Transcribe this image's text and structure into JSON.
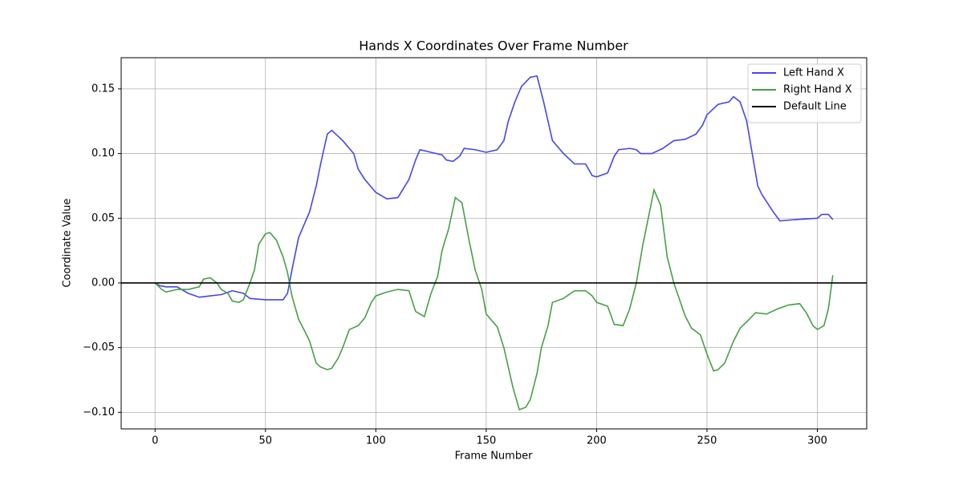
{
  "chart_data": {
    "type": "line",
    "title": "Hands X Coordinates Over Frame Number",
    "xlabel": "Frame Number",
    "ylabel": "Coordinate Value",
    "xlim": [
      -15.35,
      322.35
    ],
    "ylim": [
      -0.1128,
      0.1741
    ],
    "xticks": [
      0,
      50,
      100,
      150,
      200,
      250,
      300
    ],
    "yticks": [
      {
        "value": -0.1,
        "label": "−0.10"
      },
      {
        "value": -0.05,
        "label": "−0.05"
      },
      {
        "value": 0,
        "label": "0.00"
      },
      {
        "value": 0.05,
        "label": "0.05"
      },
      {
        "value": 0.1,
        "label": "0.10"
      },
      {
        "value": 0.15,
        "label": "0.15"
      }
    ],
    "grid": true,
    "legend": "upper right",
    "series": [
      {
        "name": "Left Hand X",
        "color": "#4545ee",
        "x": [
          0,
          2,
          5,
          10,
          15,
          20,
          25,
          30,
          35,
          40,
          43,
          50,
          55,
          58,
          60,
          62,
          65,
          70,
          73,
          75,
          78,
          80,
          85,
          90,
          92,
          95,
          100,
          105,
          110,
          115,
          118,
          120,
          125,
          130,
          132,
          135,
          138,
          140,
          145,
          150,
          155,
          158,
          160,
          163,
          166,
          170,
          173,
          176,
          178,
          180,
          185,
          190,
          195,
          198,
          200,
          205,
          208,
          210,
          215,
          218,
          220,
          225,
          230,
          235,
          240,
          245,
          248,
          250,
          255,
          260,
          262,
          265,
          268,
          270,
          273,
          275,
          280,
          283,
          290,
          300,
          302,
          305,
          307
        ],
        "values": [
          0.0,
          -0.002,
          -0.003,
          -0.003,
          -0.008,
          -0.011,
          -0.01,
          -0.009,
          -0.006,
          -0.008,
          -0.012,
          -0.013,
          -0.013,
          -0.013,
          -0.008,
          0.01,
          0.035,
          0.055,
          0.075,
          0.092,
          0.115,
          0.118,
          0.11,
          0.1,
          0.088,
          0.08,
          0.07,
          0.065,
          0.066,
          0.08,
          0.095,
          0.103,
          0.101,
          0.099,
          0.095,
          0.094,
          0.098,
          0.104,
          0.103,
          0.101,
          0.103,
          0.11,
          0.125,
          0.14,
          0.152,
          0.159,
          0.16,
          0.14,
          0.125,
          0.11,
          0.1,
          0.092,
          0.092,
          0.083,
          0.082,
          0.085,
          0.098,
          0.103,
          0.104,
          0.103,
          0.1,
          0.1,
          0.104,
          0.11,
          0.111,
          0.115,
          0.122,
          0.13,
          0.138,
          0.14,
          0.144,
          0.14,
          0.125,
          0.105,
          0.075,
          0.068,
          0.055,
          0.048,
          0.049,
          0.05,
          0.053,
          0.053,
          0.049
        ]
      },
      {
        "name": "Right Hand X",
        "color": "#45a045",
        "x": [
          0,
          3,
          5,
          10,
          15,
          20,
          22,
          25,
          28,
          30,
          33,
          35,
          38,
          40,
          43,
          45,
          47,
          50,
          52,
          55,
          58,
          60,
          62,
          65,
          68,
          70,
          73,
          75,
          78,
          80,
          83,
          85,
          88,
          92,
          95,
          98,
          100,
          105,
          110,
          115,
          118,
          122,
          125,
          128,
          130,
          133,
          136,
          139,
          142,
          145,
          148,
          150,
          152,
          155,
          158,
          162,
          165,
          168,
          170,
          173,
          175,
          178,
          180,
          185,
          190,
          195,
          198,
          200,
          205,
          208,
          212,
          215,
          218,
          221,
          224,
          226,
          229,
          232,
          235,
          238,
          240,
          243,
          247,
          250,
          253,
          255,
          258,
          262,
          265,
          268,
          272,
          277,
          282,
          287,
          292,
          295,
          298,
          300,
          303,
          305,
          307
        ],
        "values": [
          0.0,
          -0.005,
          -0.007,
          -0.005,
          -0.005,
          -0.003,
          0.003,
          0.004,
          0.0,
          -0.005,
          -0.008,
          -0.014,
          -0.015,
          -0.013,
          0.0,
          0.01,
          0.03,
          0.038,
          0.039,
          0.033,
          0.02,
          0.008,
          -0.01,
          -0.028,
          -0.038,
          -0.045,
          -0.062,
          -0.065,
          -0.067,
          -0.066,
          -0.058,
          -0.05,
          -0.036,
          -0.033,
          -0.027,
          -0.015,
          -0.01,
          -0.007,
          -0.005,
          -0.006,
          -0.022,
          -0.026,
          -0.008,
          0.005,
          0.025,
          0.042,
          0.066,
          0.062,
          0.035,
          0.01,
          -0.005,
          -0.024,
          -0.028,
          -0.034,
          -0.05,
          -0.08,
          -0.098,
          -0.096,
          -0.09,
          -0.07,
          -0.05,
          -0.033,
          -0.015,
          -0.012,
          -0.006,
          -0.006,
          -0.01,
          -0.015,
          -0.018,
          -0.032,
          -0.033,
          -0.02,
          0.0,
          0.03,
          0.055,
          0.072,
          0.06,
          0.02,
          0.0,
          -0.015,
          -0.025,
          -0.035,
          -0.04,
          -0.055,
          -0.068,
          -0.067,
          -0.062,
          -0.045,
          -0.035,
          -0.03,
          -0.023,
          -0.024,
          -0.02,
          -0.017,
          -0.016,
          -0.023,
          -0.033,
          -0.036,
          -0.033,
          -0.02,
          0.006
        ]
      }
    ],
    "hline": {
      "name": "Default Line",
      "color": "#000000",
      "value": 0
    }
  }
}
